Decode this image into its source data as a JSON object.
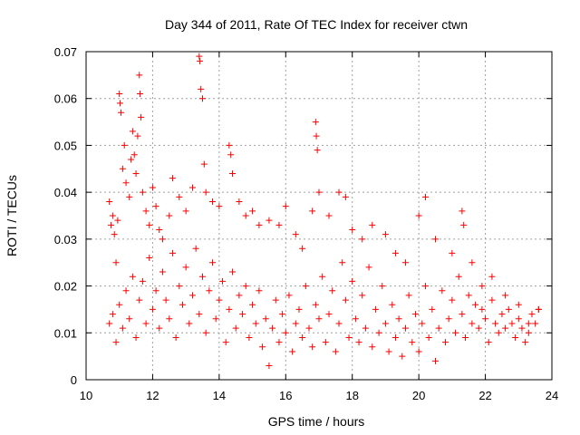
{
  "chart_data": {
    "type": "scatter",
    "title": "Day 344 of 2011, Rate Of TEC Index for receiver ctwn",
    "xlabel": "GPS time / hours",
    "ylabel": "ROTI / TECUs",
    "xlim": [
      10,
      24
    ],
    "ylim": [
      0,
      0.07
    ],
    "x_ticks": [
      "10",
      "12",
      "14",
      "16",
      "18",
      "20",
      "22",
      "24"
    ],
    "y_ticks": [
      "0",
      "0.01",
      "0.02",
      "0.03",
      "0.04",
      "0.05",
      "0.06",
      "0.07"
    ],
    "grid": true,
    "marker": "+",
    "color": "#ff0000",
    "series": [
      {
        "points": [
          [
            10.7,
            0.038
          ],
          [
            10.75,
            0.033
          ],
          [
            10.8,
            0.035
          ],
          [
            10.85,
            0.031
          ],
          [
            10.9,
            0.025
          ],
          [
            10.95,
            0.034
          ],
          [
            11.0,
            0.061
          ],
          [
            11.02,
            0.059
          ],
          [
            11.05,
            0.057
          ],
          [
            11.1,
            0.045
          ],
          [
            11.15,
            0.05
          ],
          [
            11.2,
            0.042
          ],
          [
            11.3,
            0.039
          ],
          [
            11.35,
            0.047
          ],
          [
            11.4,
            0.053
          ],
          [
            11.45,
            0.048
          ],
          [
            11.5,
            0.044
          ],
          [
            11.55,
            0.052
          ],
          [
            11.6,
            0.065
          ],
          [
            11.62,
            0.061
          ],
          [
            11.65,
            0.056
          ],
          [
            11.7,
            0.04
          ],
          [
            11.8,
            0.036
          ],
          [
            11.9,
            0.033
          ],
          [
            12.0,
            0.041
          ],
          [
            12.1,
            0.037
          ],
          [
            12.2,
            0.032
          ],
          [
            12.3,
            0.03
          ],
          [
            12.5,
            0.035
          ],
          [
            12.6,
            0.043
          ],
          [
            12.8,
            0.039
          ],
          [
            13.0,
            0.036
          ],
          [
            13.2,
            0.041
          ],
          [
            13.4,
            0.069
          ],
          [
            13.42,
            0.068
          ],
          [
            13.45,
            0.062
          ],
          [
            13.5,
            0.06
          ],
          [
            13.55,
            0.046
          ],
          [
            13.6,
            0.04
          ],
          [
            13.8,
            0.038
          ],
          [
            14.0,
            0.037
          ],
          [
            14.3,
            0.05
          ],
          [
            14.35,
            0.048
          ],
          [
            14.4,
            0.044
          ],
          [
            14.6,
            0.038
          ],
          [
            14.8,
            0.035
          ],
          [
            15.0,
            0.036
          ],
          [
            15.2,
            0.033
          ],
          [
            15.5,
            0.034
          ],
          [
            15.8,
            0.033
          ],
          [
            16.0,
            0.037
          ],
          [
            16.3,
            0.031
          ],
          [
            16.5,
            0.028
          ],
          [
            16.8,
            0.036
          ],
          [
            16.9,
            0.055
          ],
          [
            16.92,
            0.052
          ],
          [
            16.95,
            0.049
          ],
          [
            17.0,
            0.04
          ],
          [
            17.3,
            0.035
          ],
          [
            17.6,
            0.04
          ],
          [
            17.8,
            0.039
          ],
          [
            18.0,
            0.032
          ],
          [
            18.3,
            0.03
          ],
          [
            18.6,
            0.033
          ],
          [
            19.0,
            0.031
          ],
          [
            19.3,
            0.027
          ],
          [
            19.6,
            0.025
          ],
          [
            20.0,
            0.035
          ],
          [
            20.2,
            0.039
          ],
          [
            20.5,
            0.03
          ],
          [
            21.0,
            0.027
          ],
          [
            21.3,
            0.036
          ],
          [
            21.35,
            0.033
          ],
          [
            21.6,
            0.025
          ],
          [
            21.9,
            0.02
          ],
          [
            22.2,
            0.022
          ],
          [
            22.6,
            0.018
          ],
          [
            23.0,
            0.016
          ],
          [
            23.3,
            0.012
          ],
          [
            23.6,
            0.015
          ],
          [
            10.7,
            0.012
          ],
          [
            10.8,
            0.014
          ],
          [
            10.9,
            0.008
          ],
          [
            11.0,
            0.016
          ],
          [
            11.1,
            0.011
          ],
          [
            11.2,
            0.019
          ],
          [
            11.3,
            0.013
          ],
          [
            11.4,
            0.022
          ],
          [
            11.5,
            0.009
          ],
          [
            11.6,
            0.017
          ],
          [
            11.7,
            0.021
          ],
          [
            11.8,
            0.012
          ],
          [
            11.9,
            0.026
          ],
          [
            12.0,
            0.015
          ],
          [
            12.1,
            0.019
          ],
          [
            12.2,
            0.011
          ],
          [
            12.3,
            0.023
          ],
          [
            12.4,
            0.017
          ],
          [
            12.5,
            0.013
          ],
          [
            12.6,
            0.027
          ],
          [
            12.7,
            0.009
          ],
          [
            12.8,
            0.02
          ],
          [
            12.9,
            0.016
          ],
          [
            13.0,
            0.024
          ],
          [
            13.1,
            0.012
          ],
          [
            13.2,
            0.018
          ],
          [
            13.3,
            0.028
          ],
          [
            13.4,
            0.014
          ],
          [
            13.5,
            0.022
          ],
          [
            13.6,
            0.01
          ],
          [
            13.7,
            0.019
          ],
          [
            13.8,
            0.025
          ],
          [
            13.9,
            0.013
          ],
          [
            14.0,
            0.017
          ],
          [
            14.1,
            0.021
          ],
          [
            14.2,
            0.008
          ],
          [
            14.3,
            0.015
          ],
          [
            14.4,
            0.023
          ],
          [
            14.5,
            0.011
          ],
          [
            14.6,
            0.018
          ],
          [
            14.7,
            0.014
          ],
          [
            14.8,
            0.02
          ],
          [
            14.9,
            0.009
          ],
          [
            15.0,
            0.016
          ],
          [
            15.1,
            0.012
          ],
          [
            15.2,
            0.019
          ],
          [
            15.3,
            0.007
          ],
          [
            15.4,
            0.013
          ],
          [
            15.5,
            0.003
          ],
          [
            15.6,
            0.011
          ],
          [
            15.7,
            0.017
          ],
          [
            15.8,
            0.008
          ],
          [
            15.9,
            0.014
          ],
          [
            16.0,
            0.01
          ],
          [
            16.1,
            0.018
          ],
          [
            16.2,
            0.006
          ],
          [
            16.3,
            0.012
          ],
          [
            16.4,
            0.015
          ],
          [
            16.5,
            0.009
          ],
          [
            16.6,
            0.02
          ],
          [
            16.7,
            0.011
          ],
          [
            16.8,
            0.007
          ],
          [
            16.9,
            0.016
          ],
          [
            17.0,
            0.013
          ],
          [
            17.1,
            0.022
          ],
          [
            17.2,
            0.008
          ],
          [
            17.3,
            0.014
          ],
          [
            17.4,
            0.019
          ],
          [
            17.5,
            0.006
          ],
          [
            17.6,
            0.012
          ],
          [
            17.7,
            0.025
          ],
          [
            17.8,
            0.017
          ],
          [
            17.9,
            0.009
          ],
          [
            18.0,
            0.021
          ],
          [
            18.1,
            0.013
          ],
          [
            18.2,
            0.008
          ],
          [
            18.3,
            0.018
          ],
          [
            18.4,
            0.011
          ],
          [
            18.5,
            0.024
          ],
          [
            18.6,
            0.007
          ],
          [
            18.7,
            0.015
          ],
          [
            18.8,
            0.01
          ],
          [
            18.9,
            0.02
          ],
          [
            19.0,
            0.012
          ],
          [
            19.1,
            0.006
          ],
          [
            19.2,
            0.016
          ],
          [
            19.3,
            0.009
          ],
          [
            19.4,
            0.013
          ],
          [
            19.5,
            0.005
          ],
          [
            19.6,
            0.011
          ],
          [
            19.7,
            0.018
          ],
          [
            19.8,
            0.008
          ],
          [
            19.9,
            0.014
          ],
          [
            20.0,
            0.006
          ],
          [
            20.1,
            0.012
          ],
          [
            20.2,
            0.02
          ],
          [
            20.3,
            0.009
          ],
          [
            20.4,
            0.015
          ],
          [
            20.5,
            0.004
          ],
          [
            20.6,
            0.011
          ],
          [
            20.7,
            0.019
          ],
          [
            20.8,
            0.008
          ],
          [
            20.9,
            0.013
          ],
          [
            21.0,
            0.017
          ],
          [
            21.1,
            0.01
          ],
          [
            21.2,
            0.022
          ],
          [
            21.3,
            0.014
          ],
          [
            21.4,
            0.009
          ],
          [
            21.5,
            0.018
          ],
          [
            21.6,
            0.012
          ],
          [
            21.7,
            0.016
          ],
          [
            21.8,
            0.011
          ],
          [
            21.9,
            0.015
          ],
          [
            22.0,
            0.013
          ],
          [
            22.1,
            0.008
          ],
          [
            22.2,
            0.017
          ],
          [
            22.3,
            0.012
          ],
          [
            22.4,
            0.01
          ],
          [
            22.5,
            0.014
          ],
          [
            22.6,
            0.011
          ],
          [
            22.7,
            0.015
          ],
          [
            22.8,
            0.012
          ],
          [
            22.9,
            0.009
          ],
          [
            23.0,
            0.013
          ],
          [
            23.1,
            0.011
          ],
          [
            23.2,
            0.008
          ],
          [
            23.3,
            0.01
          ],
          [
            23.4,
            0.014
          ],
          [
            23.5,
            0.012
          ],
          [
            23.6,
            0.015
          ]
        ]
      }
    ]
  }
}
